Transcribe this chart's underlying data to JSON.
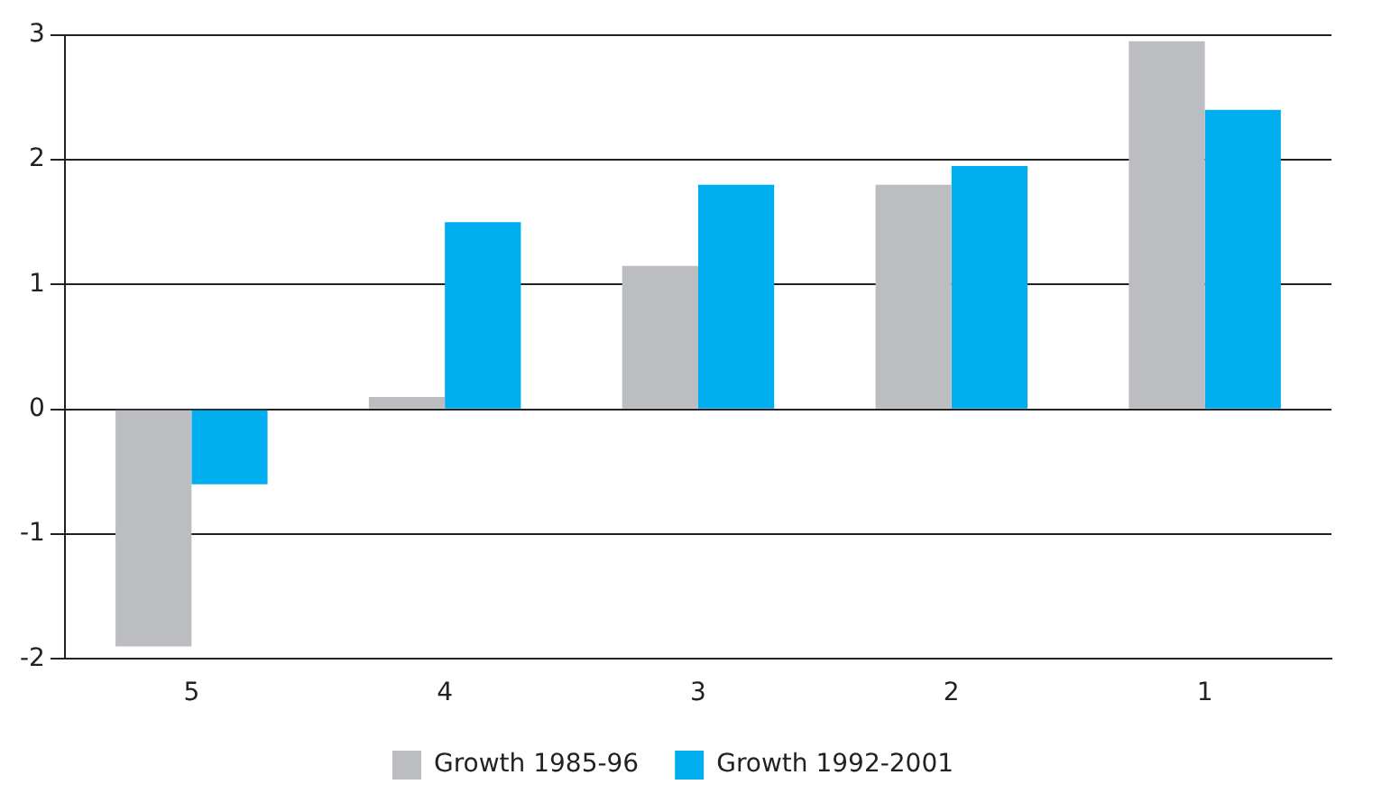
{
  "chart_data": {
    "type": "bar",
    "categories": [
      "5",
      "4",
      "3",
      "2",
      "1"
    ],
    "series": [
      {
        "name": "Growth 1985-96",
        "color": "#bcbdc0",
        "values": [
          -1.9,
          0.1,
          1.15,
          1.8,
          2.95
        ]
      },
      {
        "name": "Growth 1992-2001",
        "color": "#00aeef",
        "values": [
          -0.6,
          1.5,
          1.8,
          1.95,
          2.4
        ]
      }
    ],
    "ylim": [
      -2,
      3
    ],
    "yticks": [
      -2,
      -1,
      0,
      1,
      2,
      3
    ],
    "grid": "y",
    "legend": "bottom"
  }
}
